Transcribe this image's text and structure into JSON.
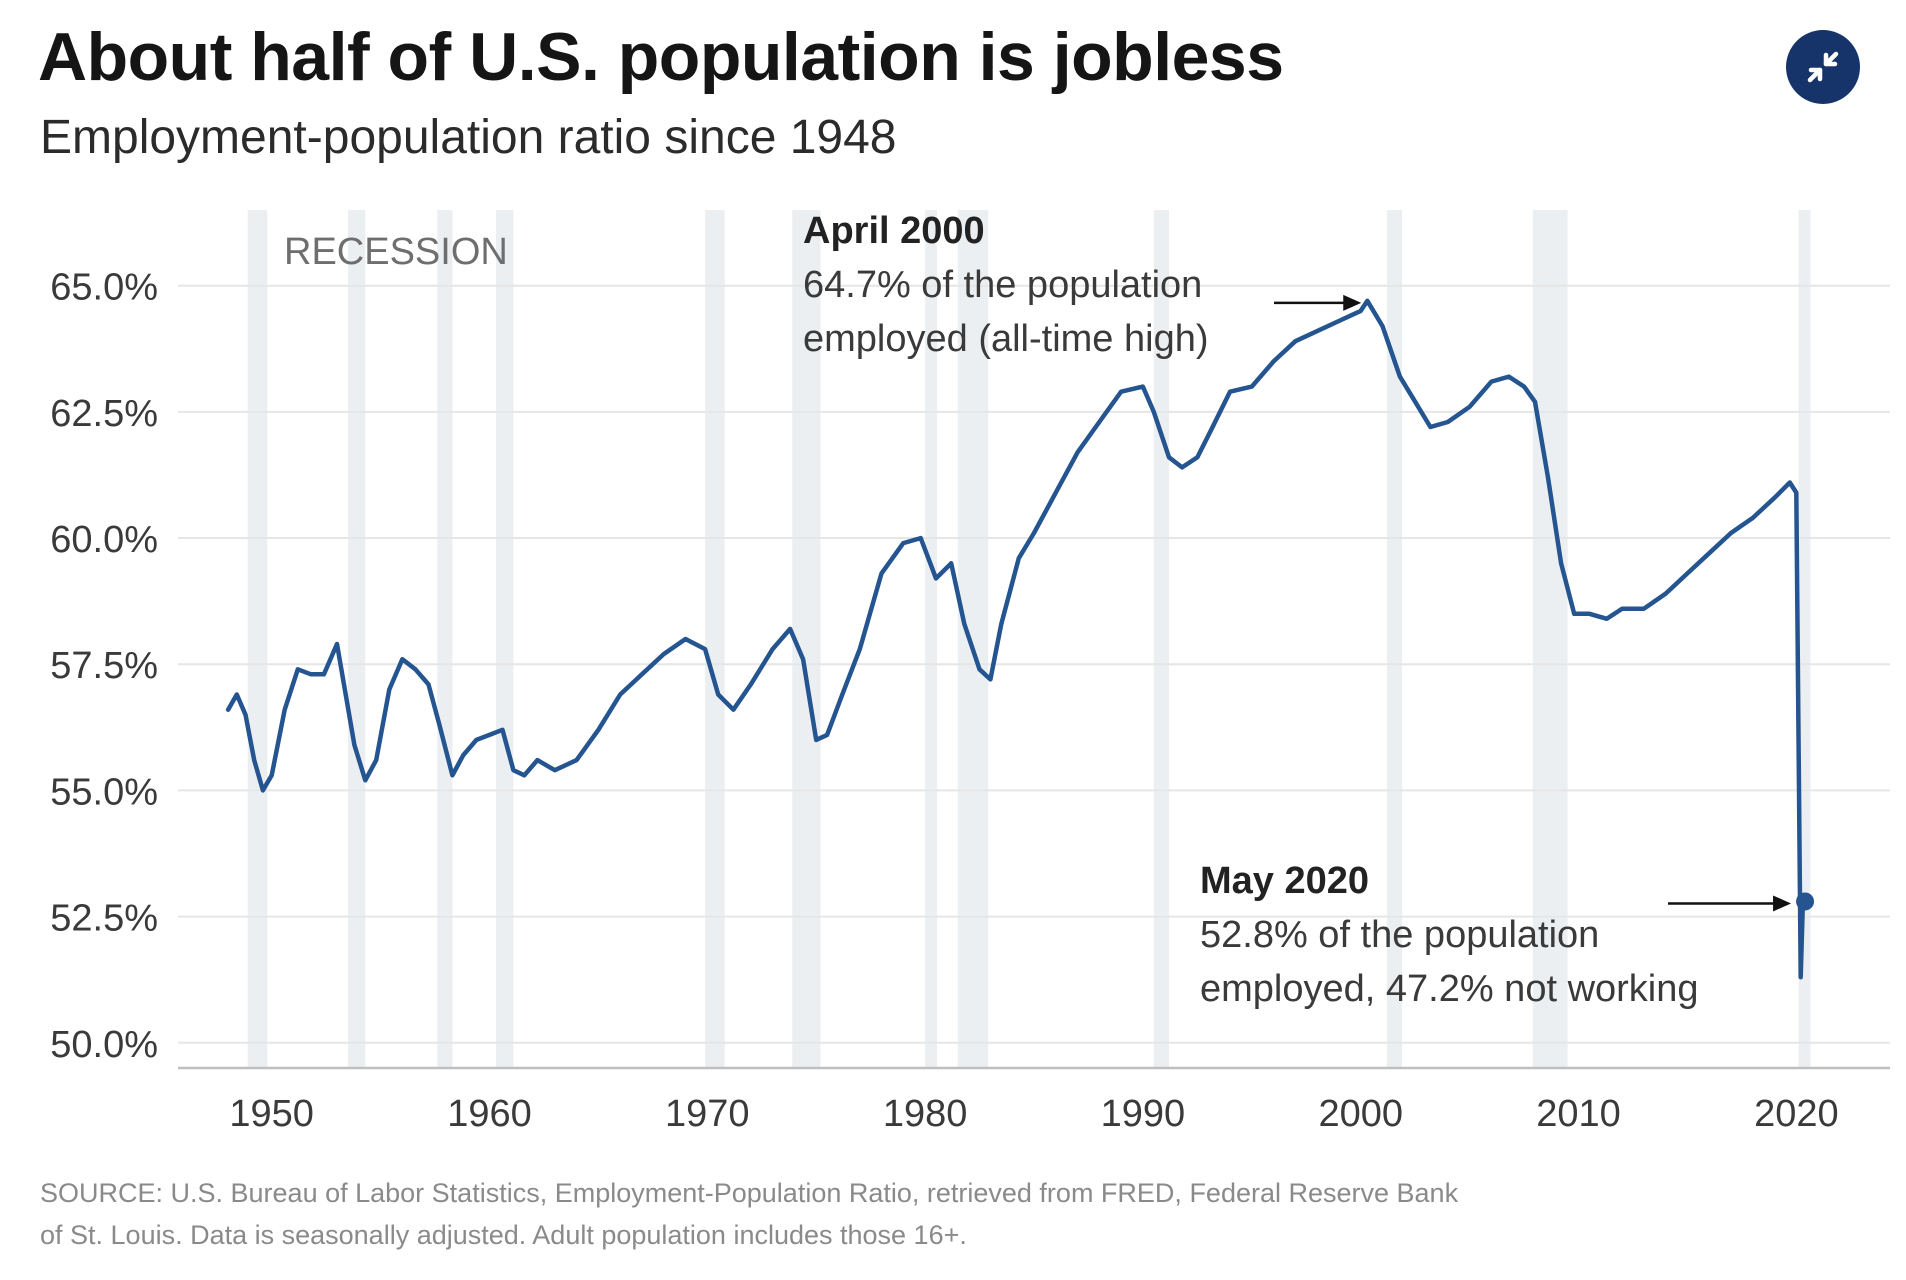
{
  "header": {
    "title": "About half of U.S. population is jobless",
    "subtitle": "Employment-population ratio since 1948"
  },
  "controls": {
    "collapse_icon": "collapse-arrows-icon"
  },
  "colors": {
    "line": "#255590",
    "recession_band": "#eceff1",
    "grid": "#e6e6e6",
    "axis": "#bfbfbf",
    "tick_label": "#3a3a3a",
    "button": "#16346a"
  },
  "chart_data": {
    "type": "line",
    "title": "About half of U.S. population is jobless",
    "subtitle": "Employment-population ratio since 1948",
    "xlabel": "",
    "ylabel": "",
    "xlim": [
      1945.7,
      2024.3
    ],
    "ylim": [
      49.5,
      66.5
    ],
    "x_ticks": [
      1950,
      1960,
      1970,
      1980,
      1990,
      2000,
      2010,
      2020
    ],
    "x_tick_labels": [
      "1950",
      "1960",
      "1970",
      "1980",
      "1990",
      "2000",
      "2010",
      "2020"
    ],
    "y_ticks": [
      50,
      52.5,
      55,
      57.5,
      60,
      62.5,
      65
    ],
    "y_tick_labels": [
      "50.0%",
      "52.5%",
      "55.0%",
      "57.5%",
      "60.0%",
      "62.5%",
      "65.0%"
    ],
    "grid": "horizontal",
    "recession_label": "RECESSION",
    "recessions": [
      [
        1948.9,
        1949.8
      ],
      [
        1953.5,
        1954.3
      ],
      [
        1957.6,
        1958.3
      ],
      [
        1960.3,
        1961.1
      ],
      [
        1969.9,
        1970.8
      ],
      [
        1973.9,
        1975.2
      ],
      [
        1980.0,
        1980.5
      ],
      [
        1981.5,
        1982.9
      ],
      [
        1990.5,
        1991.2
      ],
      [
        2001.2,
        2001.9
      ],
      [
        2007.9,
        2009.5
      ],
      [
        2020.1,
        2020.4
      ]
    ],
    "series": [
      {
        "name": "Employment-population ratio (%)",
        "x": [
          1948.0,
          1948.4,
          1948.8,
          1949.2,
          1949.6,
          1950.0,
          1950.6,
          1951.2,
          1951.8,
          1952.4,
          1953.0,
          1953.4,
          1953.8,
          1954.3,
          1954.8,
          1955.4,
          1956.0,
          1956.6,
          1957.2,
          1957.7,
          1958.3,
          1958.8,
          1959.4,
          1960.0,
          1960.6,
          1961.1,
          1961.6,
          1962.2,
          1963.0,
          1964.0,
          1965.0,
          1966.0,
          1967.0,
          1968.0,
          1969.0,
          1969.9,
          1970.5,
          1971.2,
          1972.0,
          1973.0,
          1973.8,
          1974.4,
          1975.0,
          1975.5,
          1976.2,
          1977.0,
          1978.0,
          1979.0,
          1979.8,
          1980.5,
          1981.2,
          1981.8,
          1982.5,
          1983.0,
          1983.5,
          1984.3,
          1985.0,
          1986.0,
          1987.0,
          1988.0,
          1989.0,
          1990.0,
          1990.5,
          1991.2,
          1991.8,
          1992.5,
          1993.2,
          1994.0,
          1995.0,
          1996.0,
          1997.0,
          1998.0,
          1999.0,
          2000.0,
          2000.3,
          2001.0,
          2001.8,
          2002.5,
          2003.2,
          2004.0,
          2005.0,
          2006.0,
          2006.8,
          2007.5,
          2008.0,
          2008.6,
          2009.2,
          2009.8,
          2010.5,
          2011.3,
          2012.0,
          2013.0,
          2014.0,
          2015.0,
          2016.0,
          2017.0,
          2018.0,
          2019.0,
          2019.7,
          2020.0,
          2020.2,
          2020.3,
          2020.4
        ],
        "values": [
          56.6,
          56.9,
          56.5,
          55.6,
          55.0,
          55.3,
          56.6,
          57.4,
          57.3,
          57.3,
          57.9,
          56.9,
          55.9,
          55.2,
          55.6,
          57.0,
          57.6,
          57.4,
          57.1,
          56.3,
          55.3,
          55.7,
          56.0,
          56.1,
          56.2,
          55.4,
          55.3,
          55.6,
          55.4,
          55.6,
          56.2,
          56.9,
          57.3,
          57.7,
          58.0,
          57.8,
          56.9,
          56.6,
          57.1,
          57.8,
          58.2,
          57.6,
          56.0,
          56.1,
          56.9,
          57.8,
          59.3,
          59.9,
          60.0,
          59.2,
          59.5,
          58.3,
          57.4,
          57.2,
          58.3,
          59.6,
          60.1,
          60.9,
          61.7,
          62.3,
          62.9,
          63.0,
          62.5,
          61.6,
          61.4,
          61.6,
          62.2,
          62.9,
          63.0,
          63.5,
          63.9,
          64.1,
          64.3,
          64.5,
          64.7,
          64.2,
          63.2,
          62.7,
          62.2,
          62.3,
          62.6,
          63.1,
          63.2,
          63.0,
          62.7,
          61.2,
          59.5,
          58.5,
          58.5,
          58.4,
          58.6,
          58.6,
          58.9,
          59.3,
          59.7,
          60.1,
          60.4,
          60.8,
          61.1,
          60.9,
          51.3,
          52.8,
          52.8
        ]
      }
    ],
    "annotations": [
      {
        "x": 2000.3,
        "y": 64.7,
        "heading": "April 2000",
        "line1": "64.7% of the population",
        "line2": "employed (all-time high)",
        "marker": false
      },
      {
        "x": 2020.4,
        "y": 52.8,
        "heading": "May 2020",
        "line1": "52.8% of the population",
        "line2": "employed, 47.2% not working",
        "marker": true
      }
    ]
  },
  "footer": {
    "source_line1": "SOURCE: U.S. Bureau of Labor Statistics, Employment-Population Ratio, retrieved from FRED, Federal Reserve Bank",
    "source_line2": "of St. Louis. Data is seasonally adjusted. Adult population includes those 16+."
  }
}
